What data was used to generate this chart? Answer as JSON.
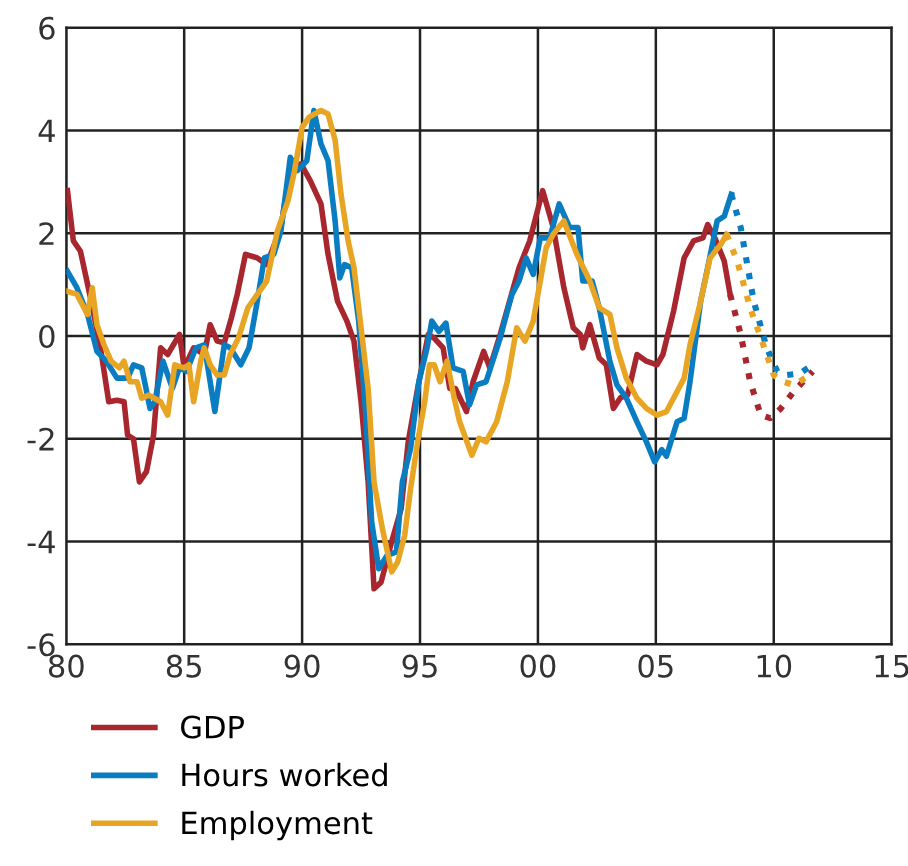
{
  "chart_data": {
    "type": "line",
    "xlim": [
      1980,
      2015
    ],
    "ylim": [
      -6,
      6
    ],
    "xticks": [
      {
        "value": 1980,
        "label": "80"
      },
      {
        "value": 1985,
        "label": "85"
      },
      {
        "value": 1990,
        "label": "90"
      },
      {
        "value": 1995,
        "label": "95"
      },
      {
        "value": 2000,
        "label": "00"
      },
      {
        "value": 2005,
        "label": "05"
      },
      {
        "value": 2010,
        "label": "10"
      },
      {
        "value": 2015,
        "label": "15"
      }
    ],
    "yticks": [
      -6,
      -4,
      -2,
      0,
      2,
      4,
      6
    ],
    "grid": true,
    "legend": "bottom",
    "line_style": "solid",
    "series": [
      {
        "name": "GDP",
        "color": "#a8262e",
        "x": [
          1980.05,
          1980.3,
          1980.6,
          1981.0,
          1981.45,
          1981.8,
          1982.15,
          1982.45,
          1982.6,
          1982.85,
          1983.1,
          1983.4,
          1983.7,
          1984.0,
          1984.3,
          1984.8,
          1985.0,
          1985.4,
          1985.85,
          1986.1,
          1986.4,
          1986.7,
          1987.0,
          1987.25,
          1987.6,
          1988.1,
          1988.5,
          1989.1,
          1989.5,
          1989.95,
          1990.35,
          1990.8,
          1991.1,
          1991.5,
          1991.9,
          1992.2,
          1992.5,
          1992.8,
          1993.05,
          1993.35,
          1993.8,
          1994.2,
          1994.5,
          1994.9,
          1995.35,
          1995.6,
          1995.98,
          1996.26,
          1996.5,
          1996.97,
          1997.25,
          1997.7,
          1997.96,
          1998.4,
          1998.8,
          1999.2,
          1999.65,
          2000.2,
          2000.65,
          2001.1,
          2001.5,
          2001.8,
          2001.9,
          2002.2,
          2002.6,
          2002.9,
          2003.2,
          2003.5,
          2003.8,
          2004.2,
          2004.6,
          2005.05,
          2005.3,
          2005.75,
          2006.2,
          2006.6,
          2007.0,
          2007.2,
          2007.5,
          2007.9,
          2008.15
        ],
        "values": [
          2.83,
          1.85,
          1.65,
          0.8,
          -0.23,
          -1.28,
          -1.25,
          -1.28,
          -1.93,
          -2.0,
          -2.84,
          -2.64,
          -1.93,
          -0.23,
          -0.36,
          0.03,
          -0.62,
          -0.23,
          -0.36,
          0.22,
          -0.1,
          -0.13,
          0.35,
          0.81,
          1.59,
          1.52,
          1.39,
          2.11,
          3.28,
          3.35,
          3.02,
          2.57,
          1.59,
          0.68,
          0.29,
          -0.1,
          -1.28,
          -2.84,
          -4.92,
          -4.79,
          -4.0,
          -3.36,
          -2.06,
          -1.02,
          0.03,
          -0.04,
          -0.23,
          -1.02,
          -1.02,
          -1.47,
          -0.89,
          -0.3,
          -0.62,
          0.03,
          0.68,
          1.33,
          1.85,
          2.83,
          2.11,
          0.94,
          0.16,
          0.03,
          -0.23,
          0.22,
          -0.43,
          -0.56,
          -1.41,
          -1.2,
          -1.15,
          -0.36,
          -0.49,
          -0.56,
          -0.36,
          0.48,
          1.52,
          1.85,
          1.91,
          2.17,
          1.91,
          1.46,
          0.81
        ]
      },
      {
        "name": "Hours worked",
        "color": "#0a7dc2",
        "x": [
          1980.05,
          1980.45,
          1980.9,
          1981.3,
          1981.7,
          1982.15,
          1982.6,
          1982.85,
          1983.2,
          1983.35,
          1983.55,
          1983.75,
          1984.1,
          1984.5,
          1984.8,
          1985.1,
          1985.5,
          1985.85,
          1986.1,
          1986.3,
          1986.7,
          1986.95,
          1987.4,
          1987.75,
          1988.1,
          1988.4,
          1988.8,
          1989.1,
          1989.5,
          1989.8,
          1990.2,
          1990.5,
          1990.8,
          1991.1,
          1991.4,
          1991.6,
          1991.8,
          1992.1,
          1992.4,
          1992.7,
          1992.95,
          1993.25,
          1993.6,
          1994.0,
          1994.25,
          1994.6,
          1994.95,
          1995.3,
          1995.5,
          1995.8,
          1996.1,
          1996.4,
          1996.83,
          1997.1,
          1997.4,
          1997.8,
          1998.4,
          1998.7,
          1998.9,
          1999.2,
          1999.5,
          1999.8,
          2000.1,
          2000.5,
          2000.9,
          2001.35,
          2001.7,
          2001.9,
          2002.3,
          2002.6,
          2003.05,
          2003.35,
          2003.75,
          2004.2,
          2004.6,
          2004.95,
          2005.25,
          2005.45,
          2005.9,
          2006.2,
          2006.45,
          2006.9,
          2007.2,
          2007.6,
          2007.9,
          2008.2
        ],
        "values": [
          1.26,
          0.94,
          0.42,
          -0.3,
          -0.49,
          -0.82,
          -0.82,
          -0.56,
          -0.62,
          -0.95,
          -1.41,
          -1.28,
          -0.49,
          -1.02,
          -0.62,
          -0.69,
          -0.23,
          -0.17,
          -0.89,
          -1.47,
          -0.17,
          -0.23,
          -0.56,
          -0.23,
          0.68,
          1.52,
          1.59,
          2.04,
          3.48,
          3.22,
          3.41,
          4.39,
          3.74,
          3.41,
          2.24,
          1.13,
          1.39,
          1.33,
          0.29,
          -1.54,
          -3.62,
          -4.53,
          -4.27,
          -4.2,
          -2.84,
          -2.19,
          -0.89,
          -0.23,
          0.29,
          0.09,
          0.25,
          -0.62,
          -0.69,
          -1.34,
          -0.95,
          -0.89,
          -0.04,
          0.48,
          0.81,
          1.07,
          1.52,
          1.2,
          1.91,
          1.91,
          2.57,
          2.11,
          2.11,
          1.07,
          1.07,
          0.55,
          -0.49,
          -0.95,
          -1.21,
          -1.67,
          -2.06,
          -2.45,
          -2.21,
          -2.34,
          -1.67,
          -1.6,
          -0.89,
          0.68,
          1.33,
          2.24,
          2.33,
          2.76
        ]
      },
      {
        "name": "Employment",
        "color": "#e8a423",
        "x": [
          1980.05,
          1980.45,
          1980.9,
          1981.1,
          1981.3,
          1981.6,
          1981.9,
          1982.25,
          1982.45,
          1982.7,
          1983.0,
          1983.2,
          1983.5,
          1984.0,
          1984.3,
          1984.6,
          1985.0,
          1985.2,
          1985.4,
          1985.7,
          1985.85,
          1986.1,
          1986.4,
          1986.7,
          1986.95,
          1987.3,
          1987.7,
          1988.1,
          1988.5,
          1988.95,
          1989.4,
          1989.65,
          1990.0,
          1990.3,
          1990.8,
          1991.1,
          1991.4,
          1991.65,
          1991.95,
          1992.2,
          1992.5,
          1992.8,
          1993.05,
          1993.4,
          1993.8,
          1994.05,
          1994.35,
          1994.6,
          1994.9,
          1995.2,
          1995.4,
          1995.6,
          1995.85,
          1996.15,
          1996.45,
          1996.68,
          1997.2,
          1997.5,
          1997.8,
          1998.25,
          1998.7,
          1999.1,
          1999.45,
          1999.8,
          2000.1,
          2000.35,
          2000.65,
          2001.1,
          2001.65,
          2002.2,
          2002.6,
          2003.05,
          2003.35,
          2003.75,
          2004.2,
          2004.6,
          2005.05,
          2005.45,
          2005.75,
          2006.2,
          2006.45,
          2006.9,
          2007.3,
          2007.75,
          2008.0
        ],
        "values": [
          0.87,
          0.81,
          0.42,
          0.94,
          0.22,
          -0.17,
          -0.49,
          -0.62,
          -0.49,
          -0.89,
          -0.89,
          -1.21,
          -1.15,
          -1.28,
          -1.54,
          -0.56,
          -0.62,
          -0.56,
          -1.28,
          -0.49,
          -0.23,
          -0.56,
          -0.76,
          -0.76,
          -0.36,
          -0.04,
          0.55,
          0.81,
          1.07,
          2.04,
          2.63,
          3.15,
          4.06,
          4.26,
          4.39,
          4.32,
          3.81,
          2.76,
          1.85,
          1.33,
          0.16,
          -1.02,
          -2.84,
          -3.74,
          -4.59,
          -4.4,
          -3.88,
          -2.97,
          -2.06,
          -1.28,
          -0.56,
          -0.56,
          -0.89,
          -0.49,
          -1.21,
          -1.67,
          -2.32,
          -1.99,
          -2.06,
          -1.67,
          -0.89,
          0.16,
          -0.1,
          0.29,
          1.07,
          1.72,
          1.98,
          2.24,
          1.59,
          1.07,
          0.55,
          0.42,
          -0.23,
          -0.82,
          -1.21,
          -1.41,
          -1.54,
          -1.47,
          -1.21,
          -0.82,
          -0.17,
          0.68,
          1.52,
          1.78,
          1.98
        ]
      },
      {
        "color": "#a8262e",
        "line_style": "dotted",
        "x": [
          2008.15,
          2008.6,
          2009.0,
          2009.45,
          2009.85,
          2010.3,
          2010.85,
          2011.65
        ],
        "values": [
          0.81,
          0.03,
          -0.89,
          -1.54,
          -1.6,
          -1.41,
          -1.08,
          -0.69
        ]
      },
      {
        "color": "#0a7dc2",
        "line_style": "dotted",
        "x": [
          2008.2,
          2008.6,
          2009.15,
          2009.7,
          2010.15,
          2010.55,
          2011.1,
          2011.65
        ],
        "values": [
          2.76,
          2.11,
          0.68,
          -0.23,
          -0.69,
          -0.76,
          -0.73,
          -0.56
        ]
      },
      {
        "color": "#e8a423",
        "line_style": "dotted",
        "x": [
          2008.0,
          2008.45,
          2009.0,
          2009.6,
          2010.0,
          2010.4,
          2010.85,
          2011.55
        ],
        "values": [
          1.98,
          1.46,
          0.55,
          -0.23,
          -0.76,
          -0.89,
          -0.95,
          -0.76
        ]
      }
    ]
  }
}
